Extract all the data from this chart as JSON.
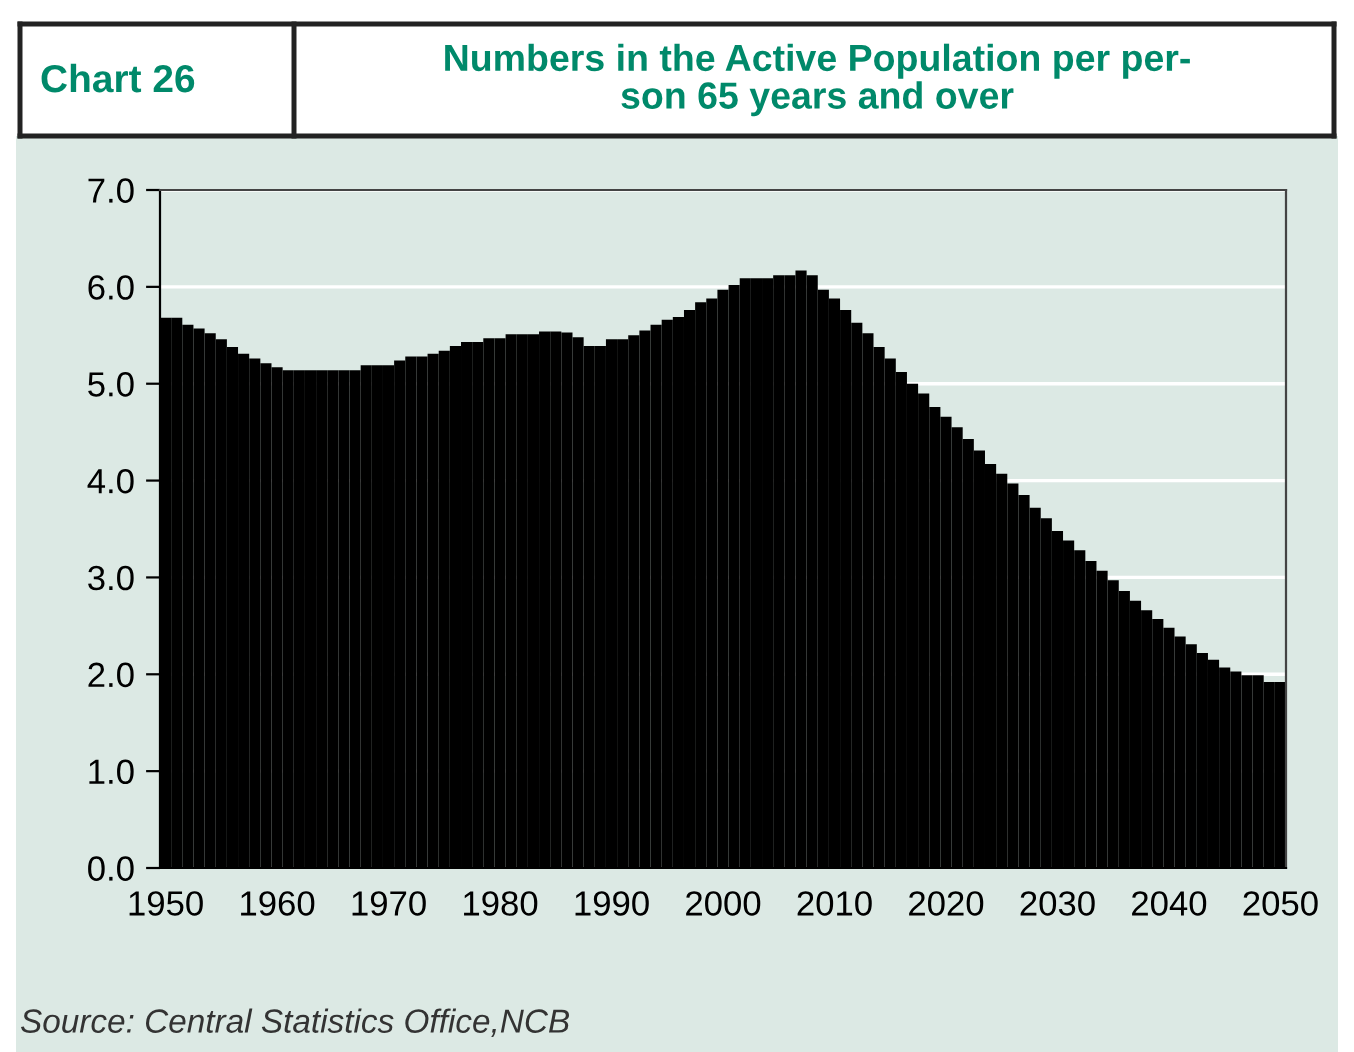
{
  "chart_data": {
    "type": "bar",
    "title": "Numbers in the Active Population per per-\nson 65 years and over",
    "annotations": [
      "Chart 26",
      "Source: Central Statistics Office,NCB"
    ],
    "x": [
      1950,
      1951,
      1952,
      1953,
      1954,
      1955,
      1956,
      1957,
      1958,
      1959,
      1960,
      1961,
      1962,
      1963,
      1964,
      1965,
      1966,
      1967,
      1968,
      1969,
      1970,
      1971,
      1972,
      1973,
      1974,
      1975,
      1976,
      1977,
      1978,
      1979,
      1980,
      1981,
      1982,
      1983,
      1984,
      1985,
      1986,
      1987,
      1988,
      1989,
      1990,
      1991,
      1992,
      1993,
      1994,
      1995,
      1996,
      1997,
      1998,
      1999,
      2000,
      2001,
      2002,
      2003,
      2004,
      2005,
      2006,
      2007,
      2008,
      2009,
      2010,
      2011,
      2012,
      2013,
      2014,
      2015,
      2016,
      2017,
      2018,
      2019,
      2020,
      2021,
      2022,
      2023,
      2024,
      2025,
      2026,
      2027,
      2028,
      2029,
      2030,
      2031,
      2032,
      2033,
      2034,
      2035,
      2036,
      2037,
      2038,
      2039,
      2040,
      2041,
      2042,
      2043,
      2044,
      2045,
      2046,
      2047,
      2048,
      2049,
      2050
    ],
    "values": [
      5.68,
      5.68,
      5.61,
      5.57,
      5.52,
      5.46,
      5.38,
      5.31,
      5.26,
      5.21,
      5.17,
      5.14,
      5.14,
      5.14,
      5.14,
      5.14,
      5.14,
      5.14,
      5.19,
      5.19,
      5.19,
      5.24,
      5.28,
      5.28,
      5.31,
      5.34,
      5.39,
      5.43,
      5.43,
      5.47,
      5.47,
      5.51,
      5.51,
      5.51,
      5.54,
      5.54,
      5.53,
      5.48,
      5.39,
      5.39,
      5.46,
      5.46,
      5.5,
      5.55,
      5.61,
      5.66,
      5.69,
      5.76,
      5.84,
      5.88,
      5.97,
      6.02,
      6.09,
      6.09,
      6.09,
      6.12,
      6.12,
      6.17,
      6.12,
      5.97,
      5.88,
      5.76,
      5.63,
      5.52,
      5.38,
      5.26,
      5.12,
      5.0,
      4.9,
      4.76,
      4.66,
      4.55,
      4.43,
      4.31,
      4.17,
      4.07,
      3.97,
      3.85,
      3.72,
      3.61,
      3.48,
      3.38,
      3.28,
      3.17,
      3.07,
      2.97,
      2.86,
      2.76,
      2.66,
      2.57,
      2.48,
      2.39,
      2.31,
      2.22,
      2.15,
      2.07,
      2.03,
      1.99,
      1.99,
      1.92,
      1.92
    ],
    "color": "#000000",
    "xlim": [
      1949.5,
      2050.5
    ],
    "xticks": [
      1950,
      1960,
      1970,
      1980,
      1990,
      2000,
      2010,
      2020,
      2030,
      2040,
      2050
    ],
    "ylim": [
      0,
      7
    ],
    "yticks": [
      {
        "value": 0,
        "label": "0.0"
      },
      {
        "value": 1,
        "label": "1.0"
      },
      {
        "value": 2,
        "label": "2.0"
      },
      {
        "value": 3,
        "label": "3.0"
      },
      {
        "value": 4,
        "label": "4.0"
      },
      {
        "value": 5,
        "label": "5.0"
      },
      {
        "value": 6,
        "label": "6.0"
      },
      {
        "value": 7,
        "label": "7.0"
      }
    ],
    "grid": "y"
  }
}
